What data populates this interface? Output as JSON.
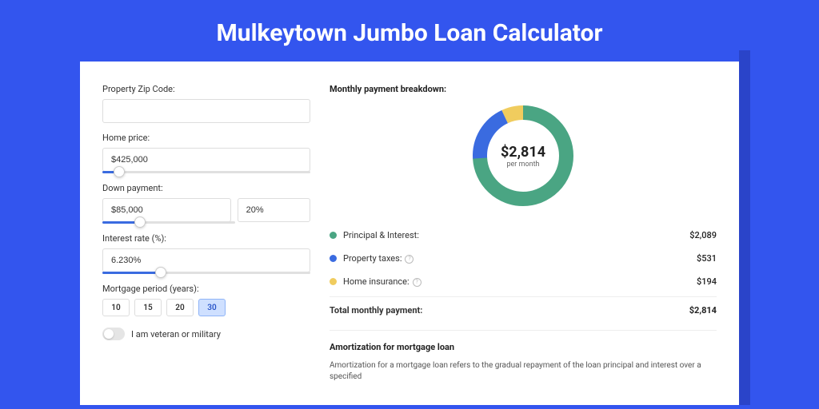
{
  "page": {
    "title": "Mulkeytown Jumbo Loan Calculator"
  },
  "form": {
    "zip": {
      "label": "Property Zip Code:",
      "value": ""
    },
    "price": {
      "label": "Home price:",
      "value": "$425,000",
      "slider_pct": 8
    },
    "down": {
      "label": "Down payment:",
      "amount": "$85,000",
      "pct": "20%",
      "slider_pct": 18
    },
    "rate": {
      "label": "Interest rate (%):",
      "value": "6.230%",
      "slider_pct": 28
    },
    "period": {
      "label": "Mortgage period (years):",
      "options": [
        "10",
        "15",
        "20",
        "30"
      ],
      "active": "30"
    },
    "veteran": {
      "label": "I am veteran or military"
    }
  },
  "breakdown": {
    "heading": "Monthly payment breakdown:",
    "center_amount": "$2,814",
    "center_sub": "per month",
    "items": [
      {
        "color": "#4aa583",
        "label": "Principal & Interest:",
        "value": "$2,089",
        "pct": 74,
        "info": false
      },
      {
        "color": "#3a6be0",
        "label": "Property taxes:",
        "value": "$531",
        "pct": 19,
        "info": true
      },
      {
        "color": "#f0cc5e",
        "label": "Home insurance:",
        "value": "$194",
        "pct": 7,
        "info": true
      }
    ],
    "total_label": "Total monthly payment:",
    "total_value": "$2,814"
  },
  "amort": {
    "title": "Amortization for mortgage loan",
    "text": "Amortization for a mortgage loan refers to the gradual repayment of the loan principal and interest over a specified"
  },
  "colors": {
    "page_bg": "#3355ee",
    "card_bg": "#ffffff",
    "accent": "#3a6be0",
    "donut_bg": "#fafbfc"
  }
}
